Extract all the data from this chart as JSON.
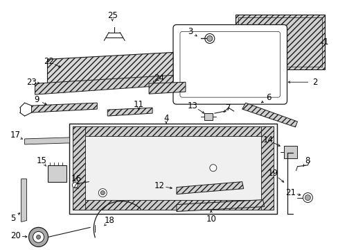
{
  "bg_color": "#ffffff",
  "fig_width": 4.89,
  "fig_height": 3.6,
  "dpi": 100,
  "lc": "#1a1a1a",
  "hatch_color": "#555555"
}
